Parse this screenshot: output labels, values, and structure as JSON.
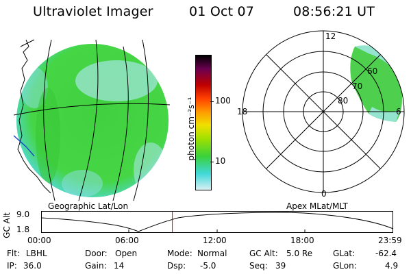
{
  "header": {
    "title": "Ultraviolet Imager",
    "date": "01 Oct 07",
    "time": "08:56:21 UT"
  },
  "geo_panel": {
    "label": "Geographic Lat/Lon"
  },
  "apex_panel": {
    "label": "Apex MLat/MLT",
    "mlt_labels": [
      "12",
      "18",
      "6",
      "0"
    ],
    "lat_labels": [
      "80",
      "70",
      "60"
    ]
  },
  "colorbar": {
    "unit": "photon cm⁻²s⁻¹",
    "ticks": [
      "100",
      "10"
    ],
    "scale": "log",
    "colors_top_to_bottom": [
      "#000000",
      "#6a0050",
      "#c00000",
      "#ff4000",
      "#ff9a00",
      "#f0e000",
      "#a0e000",
      "#3ad13a",
      "#40d8d8",
      "#d8f0f4"
    ]
  },
  "altitude_plot": {
    "ylabel": "GC Alt",
    "yticks": [
      "9.0",
      "1.8"
    ],
    "xticks": [
      "00:00",
      "06:00",
      "12:00",
      "18:00",
      "23:59"
    ],
    "current_time_hours": 8.94
  },
  "status": {
    "flt_label": "Flt:",
    "flt_value": "LBHL",
    "ip_label": "IP:",
    "ip_value": "36.0",
    "door_label": "Door:",
    "door_value": "Open",
    "gain_label": "Gain:",
    "gain_value": "14",
    "mode_label": "Mode:",
    "mode_value": "Normal",
    "dsp_label": "Dsp:",
    "dsp_value": "-5.0",
    "gcalt_label": "GC Alt:",
    "gcalt_value": "5.0 Re",
    "seq_label": "Seq:",
    "seq_value": "39",
    "glat_label": "GLat:",
    "glat_value": "-62.4",
    "glon_label": "GLon:",
    "glon_value": "4.9"
  }
}
